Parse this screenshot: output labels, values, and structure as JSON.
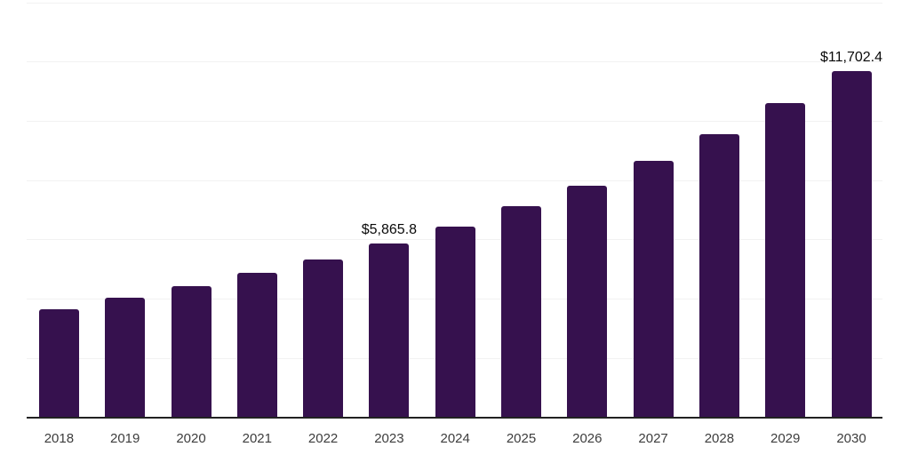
{
  "chart": {
    "background_color": "#ffffff",
    "bar_color": "#36114E",
    "gridline_color": "#f2f2f2",
    "axis_line_color": "#222222",
    "tick_label_color": "#3d3d3d",
    "data_label_color": "#0a0a0a"
  },
  "chart_data": {
    "type": "bar",
    "title": "",
    "xlabel": "",
    "ylabel": "",
    "categories": [
      "2018",
      "2019",
      "2020",
      "2021",
      "2022",
      "2023",
      "2024",
      "2025",
      "2026",
      "2027",
      "2028",
      "2029",
      "2030"
    ],
    "values": [
      3670,
      4040,
      4430,
      4890,
      5330,
      5865.8,
      6460,
      7120,
      7810,
      8650,
      9570,
      10610,
      11702.4
    ],
    "data_labels": [
      "",
      "",
      "",
      "",
      "",
      "$5,865.8",
      "",
      "",
      "",
      "",
      "",
      "",
      "$11,702.4"
    ],
    "ylim": [
      0,
      14000
    ],
    "gridline_interval": 2000,
    "grid": true,
    "legend": "none",
    "y_axis_tick_labels_visible": false
  }
}
